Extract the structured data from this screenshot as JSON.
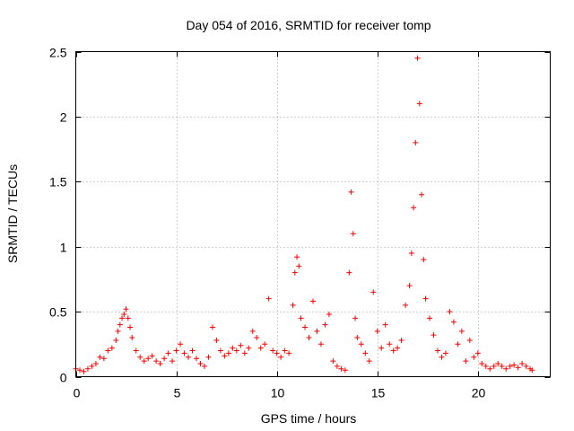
{
  "chart_data": {
    "type": "scatter",
    "title": "Day 054 of 2016, SRMTID for receiver tomp",
    "xlabel": "GPS time / hours",
    "ylabel": "SRMTID / TECUs",
    "xlim": [
      0,
      23.6
    ],
    "ylim": [
      0,
      2.5
    ],
    "x_ticks": [
      0,
      5,
      10,
      15,
      20
    ],
    "y_ticks": [
      0,
      0.5,
      1,
      1.5,
      2,
      2.5
    ],
    "x_tick_labels": [
      "0",
      "5",
      "10",
      "15",
      "20"
    ],
    "y_tick_labels": [
      "0",
      "0.5",
      "1",
      "1.5",
      "2",
      "2.5"
    ],
    "grid": true,
    "marker": "+",
    "color": "#ff0000",
    "series": [
      {
        "name": "SRMTID",
        "x": [
          0.0,
          0.2,
          0.4,
          0.6,
          0.8,
          1.0,
          1.2,
          1.4,
          1.6,
          1.8,
          2.0,
          2.1,
          2.2,
          2.3,
          2.4,
          2.5,
          2.6,
          2.7,
          2.8,
          3.0,
          3.2,
          3.4,
          3.6,
          3.8,
          4.0,
          4.2,
          4.4,
          4.6,
          4.8,
          5.0,
          5.2,
          5.4,
          5.6,
          5.8,
          6.0,
          6.2,
          6.4,
          6.6,
          6.8,
          7.0,
          7.2,
          7.4,
          7.6,
          7.8,
          8.0,
          8.2,
          8.4,
          8.6,
          8.8,
          9.0,
          9.2,
          9.4,
          9.6,
          9.8,
          10.0,
          10.2,
          10.4,
          10.6,
          10.8,
          10.9,
          11.0,
          11.1,
          11.2,
          11.4,
          11.6,
          11.8,
          12.0,
          12.2,
          12.4,
          12.6,
          12.8,
          13.0,
          13.2,
          13.4,
          13.6,
          13.7,
          13.8,
          13.9,
          14.0,
          14.2,
          14.4,
          14.6,
          14.8,
          15.0,
          15.2,
          15.4,
          15.6,
          15.8,
          16.0,
          16.2,
          16.4,
          16.6,
          16.7,
          16.8,
          16.9,
          17.0,
          17.1,
          17.2,
          17.3,
          17.4,
          17.6,
          17.8,
          18.0,
          18.2,
          18.4,
          18.6,
          18.8,
          19.0,
          19.2,
          19.4,
          19.6,
          19.8,
          20.0,
          20.2,
          20.4,
          20.6,
          20.8,
          21.0,
          21.2,
          21.4,
          21.6,
          21.8,
          22.0,
          22.2,
          22.4,
          22.6,
          22.7
        ],
        "y": [
          0.06,
          0.05,
          0.04,
          0.06,
          0.08,
          0.1,
          0.15,
          0.14,
          0.2,
          0.22,
          0.28,
          0.35,
          0.4,
          0.45,
          0.48,
          0.52,
          0.45,
          0.38,
          0.3,
          0.2,
          0.15,
          0.12,
          0.14,
          0.16,
          0.12,
          0.1,
          0.14,
          0.18,
          0.12,
          0.2,
          0.25,
          0.18,
          0.15,
          0.2,
          0.14,
          0.1,
          0.08,
          0.15,
          0.38,
          0.28,
          0.2,
          0.16,
          0.18,
          0.22,
          0.2,
          0.24,
          0.18,
          0.22,
          0.35,
          0.3,
          0.22,
          0.25,
          0.6,
          0.2,
          0.18,
          0.15,
          0.2,
          0.18,
          0.55,
          0.8,
          0.92,
          0.85,
          0.45,
          0.38,
          0.3,
          0.58,
          0.35,
          0.25,
          0.4,
          0.48,
          0.12,
          0.08,
          0.06,
          0.05,
          0.8,
          1.42,
          1.1,
          0.45,
          0.3,
          0.25,
          0.18,
          0.12,
          0.65,
          0.35,
          0.22,
          0.4,
          0.25,
          0.2,
          0.22,
          0.28,
          0.55,
          0.7,
          0.95,
          1.3,
          1.8,
          2.45,
          2.1,
          1.4,
          0.9,
          0.6,
          0.45,
          0.32,
          0.2,
          0.15,
          0.18,
          0.5,
          0.42,
          0.25,
          0.35,
          0.12,
          0.28,
          0.15,
          0.18,
          0.1,
          0.08,
          0.06,
          0.08,
          0.1,
          0.08,
          0.06,
          0.08,
          0.09,
          0.07,
          0.1,
          0.08,
          0.06,
          0.05
        ]
      }
    ]
  }
}
